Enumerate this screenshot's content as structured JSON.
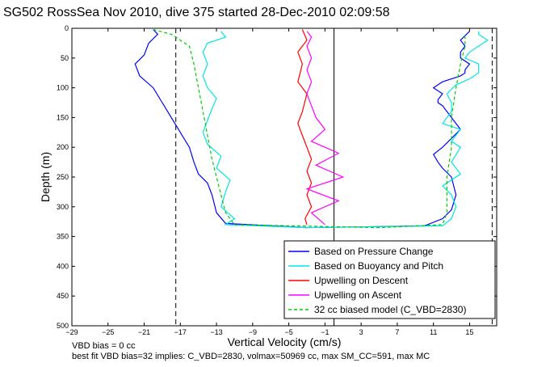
{
  "chart_data": {
    "type": "line",
    "title": "SG502 RossSea Nov 2010, dive 375 started 28-Dec-2010 02:09:58",
    "xlabel": "Vertical Velocity (cm/s)",
    "ylabel": "Depth (m)",
    "xlim": [
      -29,
      18
    ],
    "ylim": [
      0,
      500
    ],
    "y_reversed": true,
    "grid": false,
    "legend_position": "bottom-right",
    "x_ticks": [
      -29,
      -25,
      -21,
      -17,
      -13,
      -9,
      -5,
      -1,
      3,
      7,
      11,
      15
    ],
    "x_tick_labels": [
      "−29",
      "−25",
      "−21",
      "−17",
      "−13",
      "−9",
      "−5",
      "−1",
      "3",
      "7",
      "11",
      "15"
    ],
    "y_ticks": [
      0,
      50,
      100,
      150,
      200,
      250,
      300,
      350,
      400,
      450,
      500
    ],
    "y_tick_labels": [
      "0",
      "50",
      "100",
      "150",
      "200",
      "250",
      "300",
      "350",
      "400",
      "450",
      "500"
    ],
    "reference_lines": {
      "solid_vertical_x": 0,
      "dashed_vertical_x": [
        -17.5,
        17.5
      ]
    },
    "series": [
      {
        "name": "Based on Pressure Change",
        "color": "#0000ff",
        "x": [
          -20,
          -19.5,
          -20.5,
          -21,
          -22,
          -21.5,
          -20,
          -19,
          -18,
          -17,
          -16,
          -15.5,
          -15,
          -14,
          -13.5,
          -13,
          -12,
          -3,
          2,
          10,
          12,
          13,
          13.5,
          13,
          12,
          11.5,
          11,
          12,
          13,
          14,
          13,
          12.5,
          12,
          11.5,
          11.5,
          12,
          11,
          11.5,
          12,
          13,
          14,
          14.5,
          14.5,
          15,
          14,
          14,
          14.5,
          14,
          15
        ],
        "y": [
          2,
          10,
          25,
          45,
          60,
          80,
          100,
          125,
          150,
          175,
          200,
          225,
          245,
          260,
          280,
          310,
          328,
          335,
          334,
          332,
          320,
          305,
          280,
          250,
          235,
          225,
          212,
          200,
          185,
          170,
          150,
          140,
          130,
          125,
          120,
          110,
          100,
          95,
          90,
          85,
          80,
          75,
          70,
          60,
          50,
          40,
          30,
          20,
          5
        ]
      },
      {
        "name": "Based on Buoyancy and Pitch",
        "color": "#00e5e5",
        "x": [
          -12.5,
          -12,
          -14,
          -14.5,
          -14,
          -14.5,
          -14,
          -13,
          -13.5,
          -14,
          -14.5,
          -14,
          -12.5,
          -13,
          -11.5,
          -12,
          -12.5,
          -11,
          -12,
          -3,
          2,
          12,
          13,
          13.5,
          13,
          12,
          14,
          13,
          14,
          13,
          14,
          12,
          13,
          13,
          12.5,
          13.5,
          15,
          16,
          16,
          14.5,
          15,
          16,
          17,
          16,
          16
        ],
        "y": [
          5,
          15,
          25,
          40,
          60,
          80,
          100,
          118,
          135,
          155,
          175,
          195,
          215,
          235,
          255,
          275,
          300,
          320,
          330,
          335,
          334,
          332,
          320,
          300,
          280,
          265,
          245,
          225,
          200,
          190,
          170,
          160,
          140,
          125,
          110,
          95,
          85,
          75,
          60,
          50,
          40,
          30,
          20,
          10,
          5
        ]
      },
      {
        "name": "Upwelling on Descent",
        "color": "#ff0000",
        "x": [
          -3.5,
          -3,
          -4,
          -3.5,
          -4,
          -3,
          -3.5,
          -4,
          -3.5,
          -3,
          -2.5,
          -3,
          -2.5,
          -3,
          -2.5,
          -3.2,
          -3
        ],
        "y": [
          2,
          20,
          40,
          60,
          90,
          110,
          140,
          160,
          180,
          200,
          220,
          240,
          260,
          280,
          300,
          320,
          330
        ]
      },
      {
        "name": "Upwelling on Ascent",
        "color": "#ff00ff",
        "x": [
          -1,
          -2.5,
          0.5,
          -3,
          1,
          -2,
          0.5,
          -2.5,
          -1,
          -2,
          -2.5,
          -3,
          -2.5,
          -3,
          -2.5,
          -3,
          -2.5,
          -3
        ],
        "y": [
          330,
          310,
          290,
          270,
          250,
          230,
          210,
          190,
          170,
          150,
          130,
          110,
          90,
          70,
          50,
          30,
          15,
          5
        ]
      },
      {
        "name": "32 cc biased model (C_VBD=2830)",
        "color": "#00cc00",
        "dashed": true,
        "x": [
          -20,
          -18,
          -16,
          -15.5,
          -15,
          -14.5,
          -14,
          -13.5,
          -13,
          -12.5,
          -12,
          -11,
          5,
          12,
          12.5,
          12.5,
          12.5,
          13,
          13,
          13.5,
          14,
          14.5,
          14.5
        ],
        "y": [
          2,
          10,
          30,
          60,
          100,
          140,
          180,
          220,
          250,
          280,
          310,
          330,
          335,
          330,
          310,
          280,
          250,
          200,
          150,
          100,
          60,
          30,
          10
        ]
      }
    ],
    "legend": [
      "Based on Pressure Change",
      "Based on Buoyancy and Pitch",
      "Upwelling on Descent",
      "Upwelling on Ascent",
      "32 cc biased model (C_VBD=2830)"
    ]
  },
  "annotations": {
    "line1": "VBD bias = 0 cc",
    "line2": "best fit VBD bias=32 implies: C_VBD=2830, volmax=50969 cc, max SM_CC=591, max MC"
  }
}
